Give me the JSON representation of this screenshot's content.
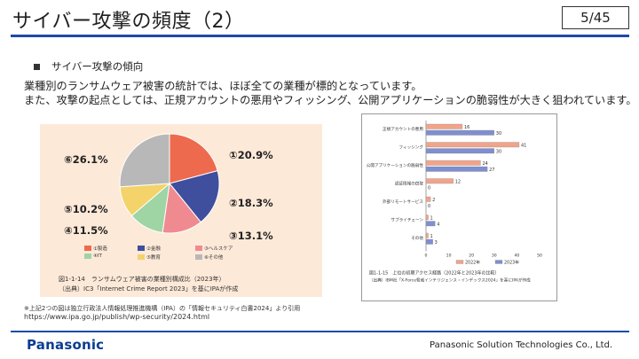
{
  "slide": {
    "title": "サイバー攻撃の頻度（2）",
    "page": "5/45",
    "bullet": "サイバー攻撃の傾向",
    "body_lines": [
      "業種別のランサムウェア被害の統計では、ほぼ全ての業種が標的となっています。",
      "また、攻撃の起点としては、正規アカウントの悪用やフィッシング、公開アプリケーションの脆弱性が大きく狙われています。"
    ],
    "footnote": "※上記2つの図は独立行政法人情報処理推進機構（IPA）の「情報セキュリティ白書2024」より引用",
    "url": "https://www.ipa.go.jp/publish/wp-security/2024.html",
    "logo": "Panasonic",
    "company": "Panasonic Solution Technologies Co., Ltd."
  },
  "colors": {
    "accent": "#1d4aa8",
    "logo": "#0b3d91"
  },
  "chart_data": [
    {
      "type": "pie",
      "labels": [
        "①20.9%",
        "②18.3%",
        "③13.1%",
        "④11.5%",
        "⑤10.2%",
        "⑥26.1%"
      ],
      "values": [
        20.9,
        18.3,
        13.1,
        11.5,
        10.2,
        26.1
      ],
      "colors": [
        "#ee6a4e",
        "#3f4f9e",
        "#f08a91",
        "#9fd4a4",
        "#f3d36a",
        "#b8b8b8"
      ],
      "legend": [
        "①製造",
        "②金融",
        "③ヘルスケア",
        "④IT",
        "⑤教育",
        "⑥その他"
      ],
      "caption": "図1-1-14　ランサムウェア被害の業種別構成比（2023年）",
      "source": "（出典）IC3「Internet Crime Report 2023」を基にIPAが作成"
    },
    {
      "type": "bar",
      "categories": [
        "正規アカウントの悪用",
        "フィッシング",
        "公開アプリケーションの脆弱性",
        "認証情報の窃取",
        "外部リモートサービス",
        "サプライチェーン",
        "その他"
      ],
      "series": [
        {
          "name": "2022年",
          "values": [
            16,
            41,
            24,
            12,
            2,
            1,
            1
          ]
        },
        {
          "name": "2023年",
          "values": [
            30,
            30,
            27,
            0,
            0,
            4,
            3
          ]
        }
      ],
      "colors": [
        "#f1a48a",
        "#7f8fcf"
      ],
      "xticks": [
        "0",
        "10",
        "20",
        "30",
        "40",
        "50"
      ],
      "xlim": [
        0,
        50
      ],
      "caption": "図1-1-15　上位の初期アクセス経路（2022年と2023年の比較）",
      "source": "（出典）IBM社「X-Force脅威インテリジェンス・インデックス2024」を基にIPAが作成"
    }
  ]
}
